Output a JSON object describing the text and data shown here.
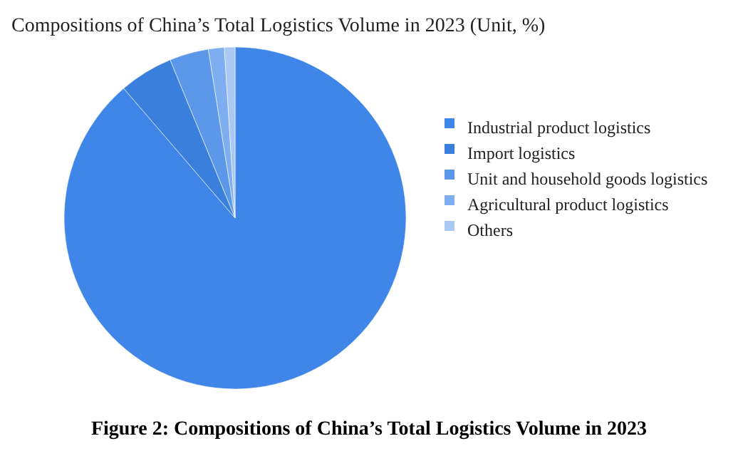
{
  "chart_data": {
    "type": "pie",
    "title": "Compositions of China’s Total Logistics Volume in 2023 (Unit, %)",
    "categories": [
      "Industrial product logistics",
      "Import logistics",
      "Unit and household goods logistics",
      "Agricultural product logistics",
      "Others"
    ],
    "values": [
      88.7,
      5.1,
      3.7,
      1.5,
      1.0
    ],
    "colors": [
      "#3f86e8",
      "#3b7fdc",
      "#5b98ea",
      "#7eaeef",
      "#a9c9f3"
    ],
    "legend": "right",
    "annotations": [
      "Figure 2: Compositions of China’s Total Logistics Volume in 2023"
    ]
  }
}
